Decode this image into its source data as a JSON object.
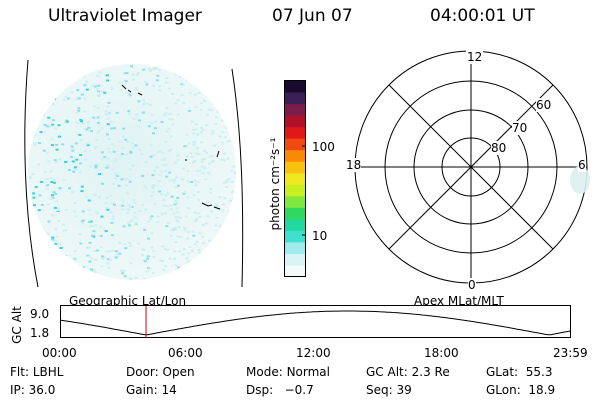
{
  "header": {
    "title": "Ultraviolet Imager",
    "date": "07 Jun 07",
    "time": "04:00:01 UT"
  },
  "colorbar": {
    "unit_label": "photon cm⁻²s⁻¹",
    "ticks": [
      "100",
      "10"
    ],
    "colors_top_to_bottom": [
      "#1a0a2e",
      "#3b1f55",
      "#7a1d4a",
      "#b0102a",
      "#e01818",
      "#f04a10",
      "#f88a08",
      "#f8c010",
      "#f0e820",
      "#c8f020",
      "#80e840",
      "#30d860",
      "#20d8a0",
      "#40e0d0",
      "#a0ecec",
      "#d8f4f4",
      "#f2fafa"
    ]
  },
  "polar_plot": {
    "time_labels": {
      "top": "12",
      "left": "18",
      "right": "6",
      "bottom": "0"
    },
    "lat_labels": [
      "60",
      "70",
      "80"
    ]
  },
  "timeline": {
    "y_axis_label": "GC Alt",
    "y_ticks": [
      "9.0",
      "1.8"
    ],
    "left_title": "Geographic Lat/Lon",
    "right_title": "Apex MLat/MLT",
    "x_ticks": [
      "00:00",
      "06:00",
      "12:00",
      "18:00",
      "23:59"
    ],
    "marker_fraction_of_day": 0.1667,
    "marker_color": "#d00000"
  },
  "info": {
    "row1": [
      {
        "label": "Flt:",
        "value": "LBHL"
      },
      {
        "label": "Door:",
        "value": "Open"
      },
      {
        "label": "Mode:",
        "value": "Normal"
      },
      {
        "label": "GC Alt:",
        "value": "2.3 Re"
      },
      {
        "label": "GLat:",
        "value": "55.3"
      }
    ],
    "row2": [
      {
        "label": "IP:",
        "value": "36.0"
      },
      {
        "label": "Gain:",
        "value": "14"
      },
      {
        "label": "Dsp:",
        "value": "−0.7"
      },
      {
        "label": "Seq:",
        "value": "39"
      },
      {
        "label": "GLon:",
        "value": "18.9"
      }
    ]
  },
  "colors": {
    "aurora_light": "#cfeef0",
    "aurora_mid": "#8fe0e6",
    "aurora_strong": "#3ed2d8"
  }
}
